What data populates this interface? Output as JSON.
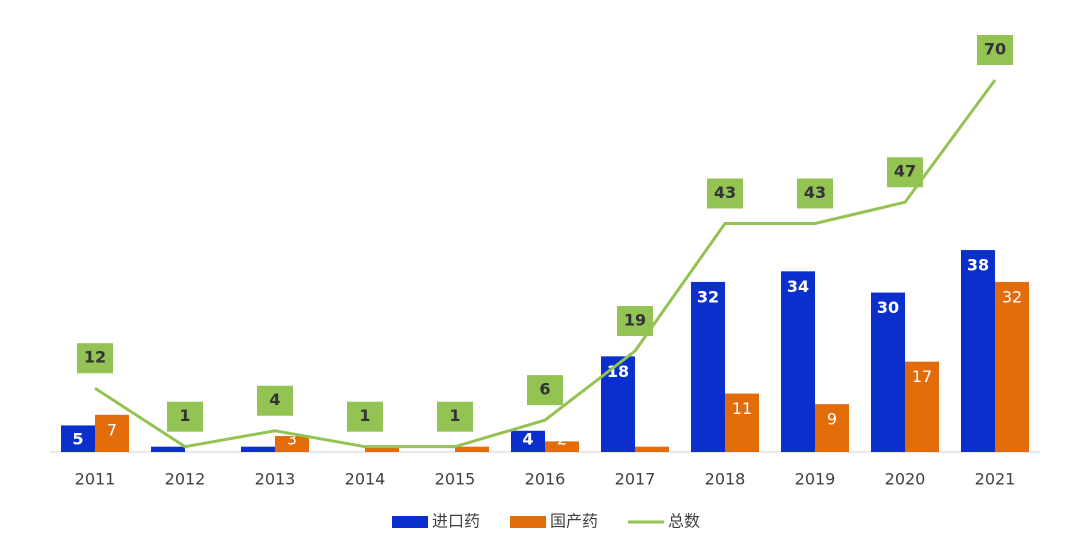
{
  "chart_data": {
    "type": "bar-line",
    "categories": [
      "2011",
      "2012",
      "2013",
      "2014",
      "2015",
      "2016",
      "2017",
      "2018",
      "2019",
      "2020",
      "2021"
    ],
    "series": [
      {
        "name": "进口药",
        "color": "#0a2fcc",
        "kind": "bar",
        "values": [
          5,
          1,
          1,
          0,
          0,
          4,
          18,
          32,
          34,
          30,
          38
        ]
      },
      {
        "name": "国产药",
        "color": "#e36c0a",
        "kind": "bar",
        "values": [
          7,
          0,
          3,
          1,
          1,
          2,
          1,
          11,
          9,
          17,
          32
        ]
      },
      {
        "name": "总数",
        "color": "#92c353",
        "kind": "line",
        "values": [
          12,
          1,
          4,
          1,
          1,
          6,
          19,
          43,
          43,
          47,
          70
        ]
      }
    ],
    "legend": "bottom"
  }
}
